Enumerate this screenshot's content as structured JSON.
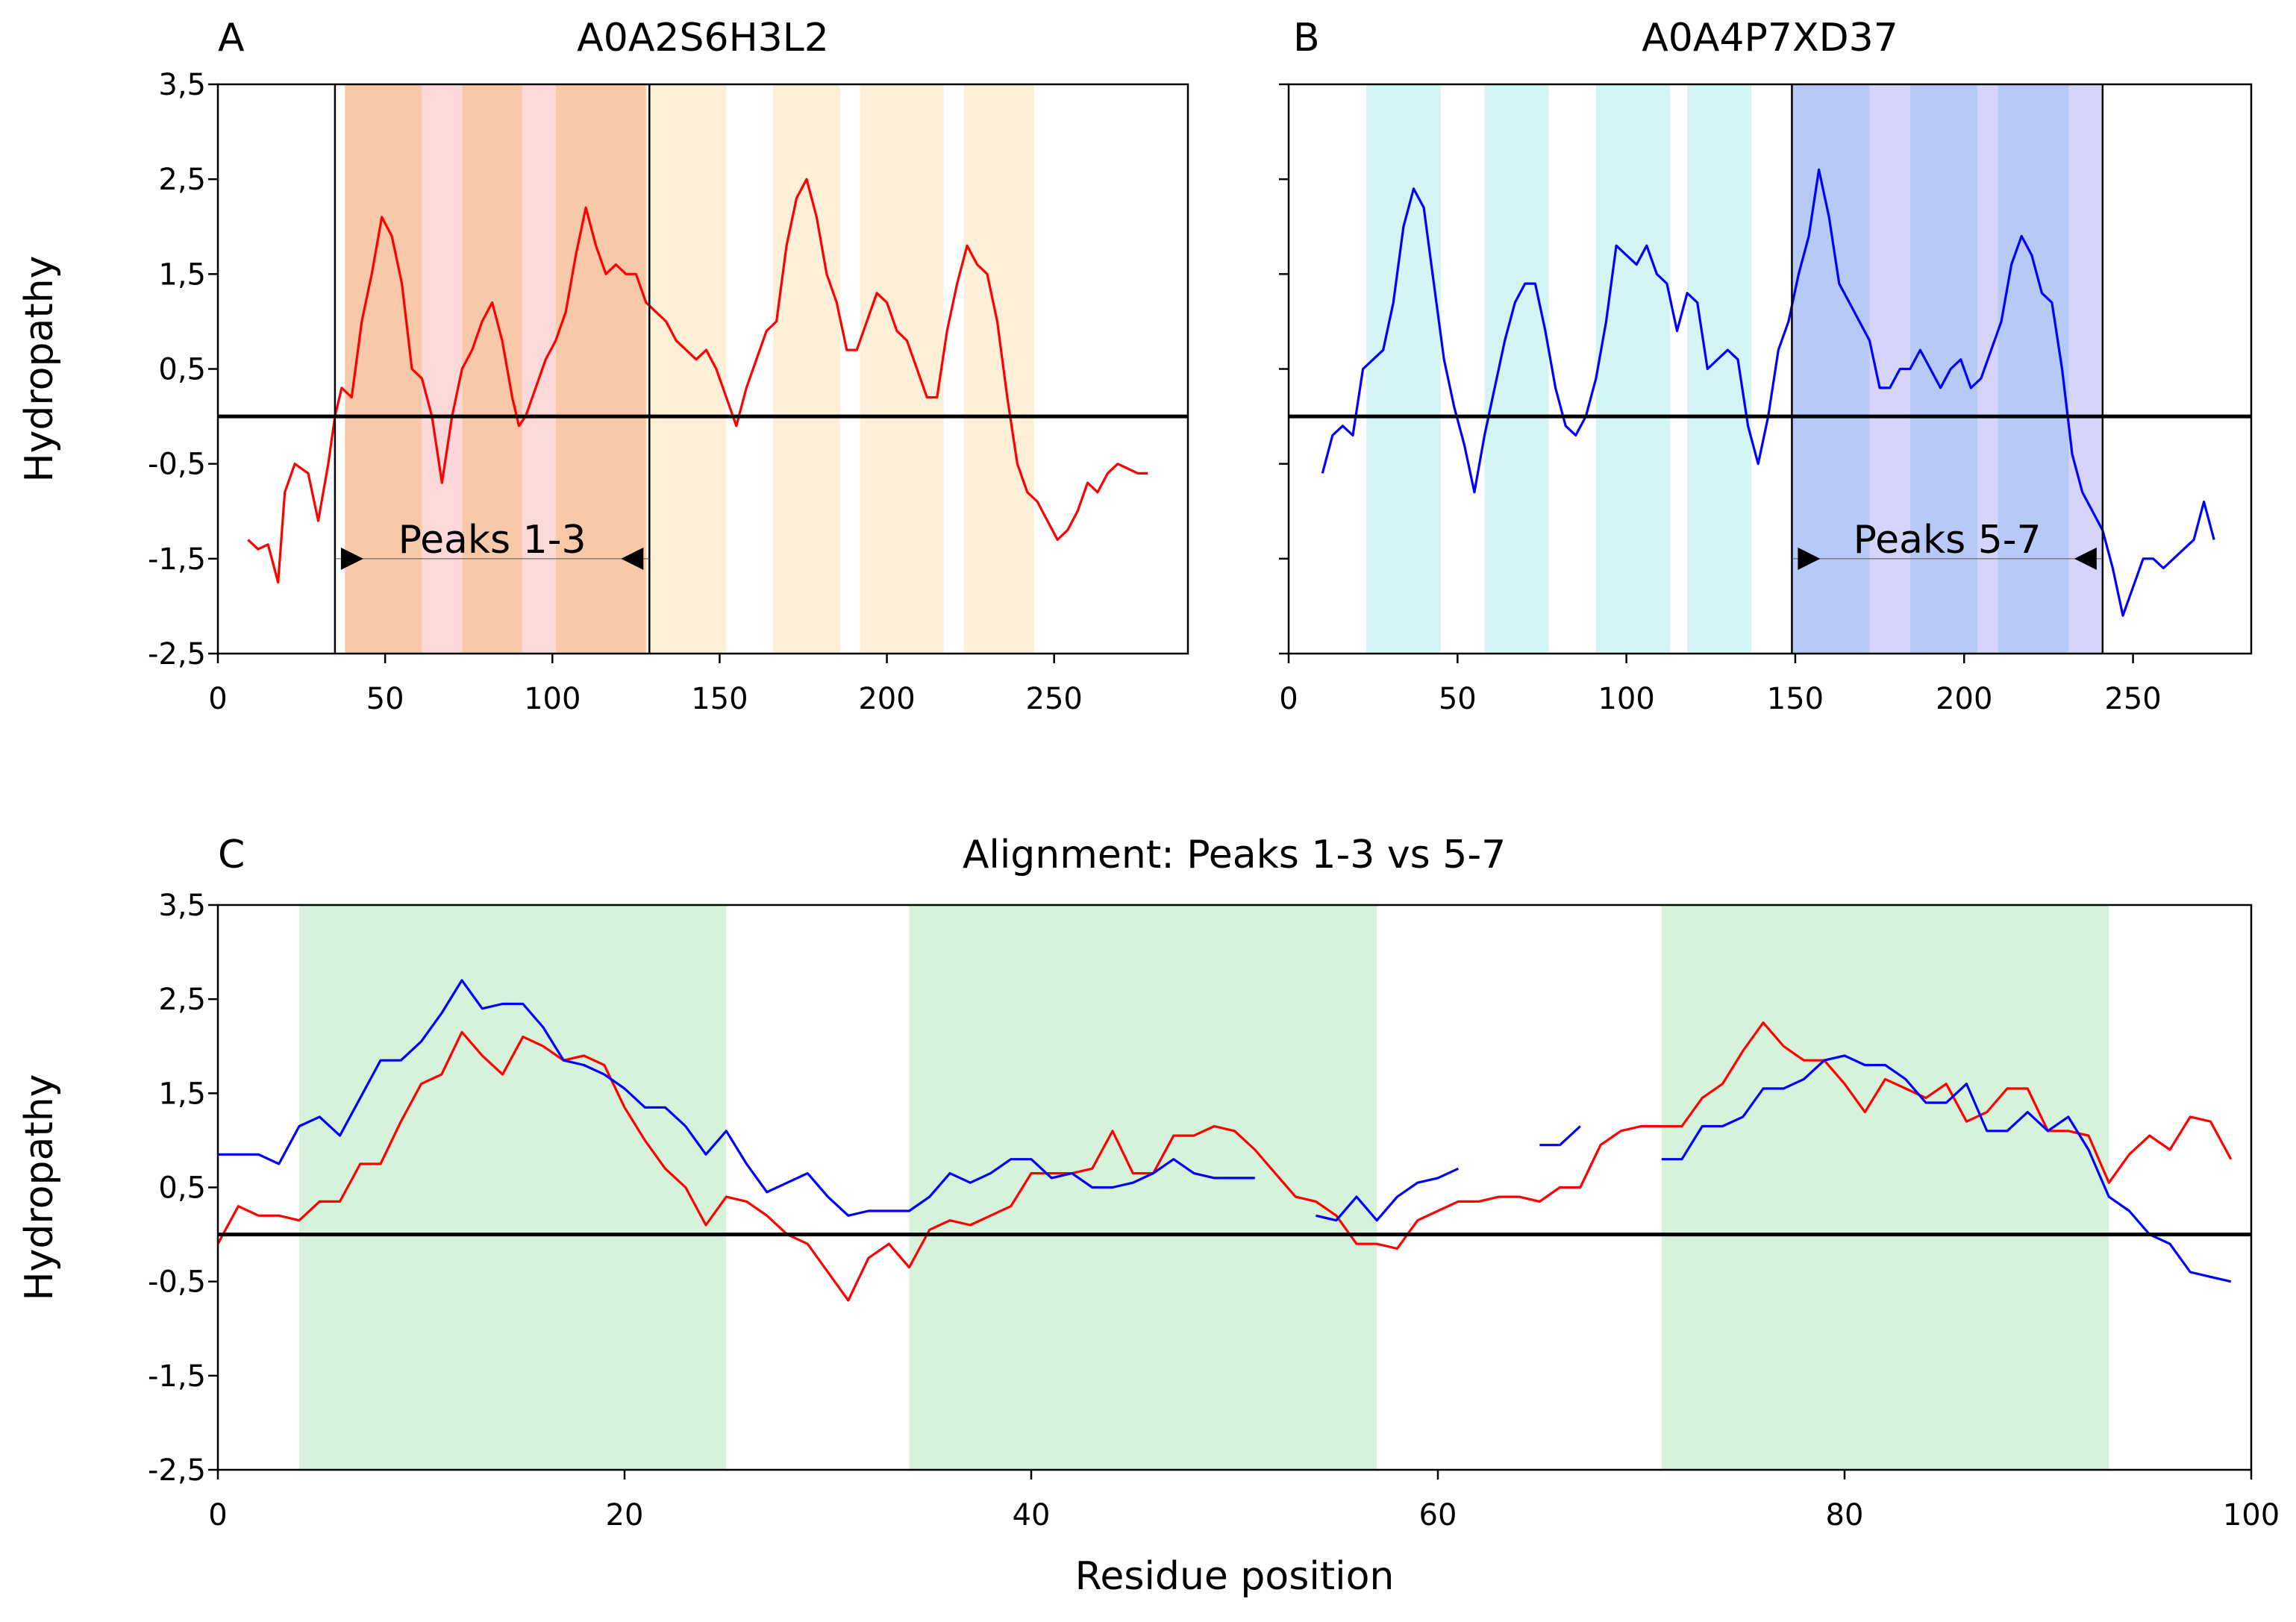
{
  "chart_data": [
    {
      "panel": "A",
      "type": "line",
      "title": "A0A2S6H3L2",
      "xlabel": "",
      "ylabel": "Hydropathy",
      "xlim": [
        0,
        290
      ],
      "ylim": [
        -2.5,
        3.5
      ],
      "xticks": [
        "0",
        "50",
        "100",
        "150",
        "200",
        "250"
      ],
      "yticks": [
        "3,5",
        "2,5",
        "1,5",
        "0,5",
        "-0,5",
        "-1,5",
        "-2,5"
      ],
      "baseline_y": 0,
      "series": [
        {
          "name": "A0A2S6H3L2",
          "color": "#ff0000",
          "x": [
            9,
            12,
            15,
            18,
            20,
            23,
            27,
            30,
            33,
            35,
            37,
            40,
            43,
            46,
            49,
            52,
            55,
            58,
            61,
            64,
            67,
            70,
            73,
            76,
            79,
            82,
            85,
            88,
            90,
            92,
            95,
            98,
            101,
            104,
            107,
            110,
            113,
            116,
            119,
            122,
            125,
            128,
            131,
            134,
            137,
            140,
            143,
            146,
            149,
            152,
            155,
            158,
            161,
            164,
            167,
            170,
            173,
            176,
            179,
            182,
            185,
            188,
            191,
            194,
            197,
            200,
            203,
            206,
            209,
            212,
            215,
            218,
            221,
            224,
            227,
            230,
            233,
            236,
            239,
            242,
            245,
            248,
            251,
            254,
            257,
            260,
            263,
            266,
            269,
            272,
            275,
            278
          ],
          "values": [
            -1.3,
            -1.4,
            -1.35,
            -1.75,
            -0.8,
            -0.5,
            -0.6,
            -1.1,
            -0.5,
            0.0,
            0.3,
            0.2,
            1.0,
            1.5,
            2.1,
            1.9,
            1.4,
            0.5,
            0.4,
            0.0,
            -0.7,
            0.0,
            0.5,
            0.7,
            1.0,
            1.2,
            0.8,
            0.2,
            -0.1,
            0.0,
            0.3,
            0.6,
            0.8,
            1.1,
            1.7,
            2.2,
            1.8,
            1.5,
            1.6,
            1.5,
            1.5,
            1.2,
            1.1,
            1.0,
            0.8,
            0.7,
            0.6,
            0.7,
            0.5,
            0.2,
            -0.1,
            0.3,
            0.6,
            0.9,
            1.0,
            1.8,
            2.3,
            2.5,
            2.1,
            1.5,
            1.2,
            0.7,
            0.7,
            1.0,
            1.3,
            1.2,
            0.9,
            0.8,
            0.5,
            0.2,
            0.2,
            0.9,
            1.4,
            1.8,
            1.6,
            1.5,
            1.0,
            0.2,
            -0.5,
            -0.8,
            -0.9,
            -1.1,
            -1.3,
            -1.2,
            -1.0,
            -0.7,
            -0.8,
            -0.6,
            -0.5,
            -0.55,
            -0.6,
            -0.6
          ]
        }
      ],
      "shaded_regions": [
        {
          "start": 38,
          "end": 61,
          "color": "#f8c9a8"
        },
        {
          "start": 61,
          "end": 73,
          "color": "#fdd8d8"
        },
        {
          "start": 73,
          "end": 91,
          "color": "#f8c9a8"
        },
        {
          "start": 91,
          "end": 101,
          "color": "#fdd8d8"
        },
        {
          "start": 101,
          "end": 128,
          "color": "#f8c9a8"
        },
        {
          "start": 128,
          "end": 152,
          "color": "#fdefd8"
        },
        {
          "start": 166,
          "end": 186,
          "color": "#fdefd8"
        },
        {
          "start": 192,
          "end": 217,
          "color": "#fdefd8"
        },
        {
          "start": 223,
          "end": 244,
          "color": "#fdefd8"
        }
      ],
      "bracket": {
        "start": 35,
        "end": 129,
        "label": "Peaks 1-3",
        "y": -1.5
      }
    },
    {
      "panel": "B",
      "type": "line",
      "title": "A0A4P7XD37",
      "xlabel": "",
      "ylabel": "",
      "xlim": [
        0,
        285
      ],
      "ylim": [
        -2.5,
        3.5
      ],
      "xticks": [
        "0",
        "50",
        "100",
        "150",
        "200",
        "250"
      ],
      "yticks": [
        "3,5",
        "2,5",
        "1,5",
        "0,5",
        "-0,5",
        "-1,5",
        "-2,5"
      ],
      "baseline_y": 0,
      "series": [
        {
          "name": "A0A4P7XD37",
          "color": "#0000ff",
          "x": [
            10,
            13,
            16,
            19,
            22,
            25,
            28,
            31,
            34,
            37,
            40,
            43,
            46,
            49,
            52,
            55,
            58,
            61,
            64,
            67,
            70,
            73,
            76,
            79,
            82,
            85,
            88,
            91,
            94,
            97,
            100,
            103,
            106,
            109,
            112,
            115,
            118,
            121,
            124,
            127,
            130,
            133,
            136,
            139,
            142,
            145,
            148,
            151,
            154,
            157,
            160,
            163,
            166,
            169,
            172,
            175,
            178,
            181,
            184,
            187,
            190,
            193,
            196,
            199,
            202,
            205,
            208,
            211,
            214,
            217,
            220,
            223,
            226,
            229,
            232,
            235,
            238,
            241,
            244,
            247,
            250,
            253,
            256,
            259,
            262,
            265,
            268,
            271,
            274
          ],
          "values": [
            -0.6,
            -0.2,
            -0.1,
            -0.2,
            0.5,
            0.6,
            0.7,
            1.2,
            2.0,
            2.4,
            2.2,
            1.4,
            0.6,
            0.1,
            -0.3,
            -0.8,
            -0.2,
            0.3,
            0.8,
            1.2,
            1.4,
            1.4,
            0.9,
            0.3,
            -0.1,
            -0.2,
            0.0,
            0.4,
            1.0,
            1.8,
            1.7,
            1.6,
            1.8,
            1.5,
            1.4,
            0.9,
            1.3,
            1.2,
            0.5,
            0.6,
            0.7,
            0.6,
            -0.1,
            -0.5,
            0.0,
            0.7,
            1.0,
            1.5,
            1.9,
            2.6,
            2.1,
            1.4,
            1.2,
            1.0,
            0.8,
            0.3,
            0.3,
            0.5,
            0.5,
            0.7,
            0.5,
            0.3,
            0.5,
            0.6,
            0.3,
            0.4,
            0.7,
            1.0,
            1.6,
            1.9,
            1.7,
            1.3,
            1.2,
            0.5,
            -0.4,
            -0.8,
            -1.0,
            -1.2,
            -1.6,
            -2.1,
            -1.8,
            -1.5,
            -1.5,
            -1.6,
            -1.5,
            -1.4,
            -1.3,
            -0.9,
            -1.3
          ]
        }
      ],
      "shaded_regions": [
        {
          "start": 23,
          "end": 45,
          "color": "#d4f5f5"
        },
        {
          "start": 58,
          "end": 77,
          "color": "#d4f5f5"
        },
        {
          "start": 91,
          "end": 113,
          "color": "#d4f5f5"
        },
        {
          "start": 118,
          "end": 137,
          "color": "#d4f5f5"
        },
        {
          "start": 149,
          "end": 172,
          "color": "#b7c9f7"
        },
        {
          "start": 172,
          "end": 184,
          "color": "#d5d5fb"
        },
        {
          "start": 184,
          "end": 204,
          "color": "#b7c9f7"
        },
        {
          "start": 204,
          "end": 210,
          "color": "#d5d5fb"
        },
        {
          "start": 210,
          "end": 231,
          "color": "#b7c9f7"
        },
        {
          "start": 231,
          "end": 241,
          "color": "#d5d5fb"
        }
      ],
      "bracket": {
        "start": 149,
        "end": 241,
        "label": "Peaks 5-7",
        "y": -1.5
      }
    },
    {
      "panel": "C",
      "type": "line",
      "title": "Alignment: Peaks 1-3 vs 5-7",
      "xlabel": "Residue position",
      "ylabel": "Hydropathy",
      "xlim": [
        0,
        100
      ],
      "ylim": [
        -2.5,
        3.5
      ],
      "xticks": [
        "0",
        "20",
        "40",
        "60",
        "80",
        "100"
      ],
      "yticks": [
        "3,5",
        "2,5",
        "1,5",
        "0,5",
        "-0,5",
        "-1,5",
        "-2,5"
      ],
      "baseline_y": 0,
      "series": [
        {
          "name": "Peaks 1-3",
          "color": "#ff0000",
          "segments": [
            {
              "x": [
                0,
                1,
                2,
                3,
                4,
                5,
                6,
                7,
                8,
                9,
                10,
                11,
                12,
                13,
                14,
                15,
                16,
                17,
                18,
                19,
                20,
                21,
                22,
                23,
                24,
                25,
                26,
                27,
                28,
                29,
                30,
                31,
                32,
                33,
                34,
                35,
                36,
                37,
                38,
                39,
                40,
                41,
                42,
                43,
                44,
                45,
                46,
                47,
                48,
                49,
                50,
                51,
                52,
                53,
                54,
                55,
                56,
                57,
                58,
                59,
                60,
                61,
                62,
                63,
                64,
                65,
                66,
                67,
                68,
                69,
                70,
                71,
                72,
                73,
                74,
                75,
                76,
                77,
                78,
                79,
                80,
                81,
                82,
                83,
                84,
                85,
                86,
                87,
                88,
                89,
                90,
                91,
                92,
                93,
                94,
                95,
                96,
                97,
                98,
                99
              ],
              "values": [
                -0.1,
                0.3,
                0.2,
                0.2,
                0.15,
                0.35,
                0.35,
                0.75,
                0.75,
                1.2,
                1.6,
                1.7,
                2.15,
                1.9,
                1.7,
                2.1,
                2.0,
                1.85,
                1.9,
                1.8,
                1.35,
                1.0,
                0.7,
                0.5,
                0.1,
                0.4,
                0.35,
                0.2,
                0.0,
                -0.1,
                -0.4,
                -0.7,
                -0.25,
                -0.1,
                -0.35,
                0.05,
                0.15,
                0.1,
                0.2,
                0.3,
                0.65,
                0.65,
                0.65,
                0.7,
                1.1,
                0.65,
                0.65,
                1.05,
                1.05,
                1.15,
                1.1,
                0.9,
                0.65,
                0.4,
                0.35,
                0.2,
                -0.1,
                -0.1,
                -0.15,
                0.15,
                0.25,
                0.35,
                0.35,
                0.4,
                0.4,
                0.35,
                0.5,
                0.5,
                0.95,
                1.1,
                1.15,
                1.15,
                1.15,
                1.45,
                1.6,
                1.95,
                2.25,
                2.0,
                1.85,
                1.85,
                1.6,
                1.3,
                1.65,
                1.55,
                1.45,
                1.6,
                1.2,
                1.3,
                1.55,
                1.55,
                1.1,
                1.1,
                1.05,
                0.55,
                0.85,
                1.05,
                0.9,
                1.25,
                1.2,
                0.8
              ]
            }
          ]
        },
        {
          "name": "Peaks 5-7",
          "color": "#0000ff",
          "segments": [
            {
              "x": [
                0,
                1,
                2,
                3,
                4,
                5,
                6,
                7,
                8,
                9,
                10,
                11,
                12,
                13,
                14,
                15,
                16,
                17,
                18,
                19,
                20,
                21,
                22,
                23,
                24,
                25,
                26,
                27,
                28,
                29,
                30,
                31,
                32,
                33,
                34,
                35,
                36,
                37,
                38,
                39,
                40,
                41,
                42,
                43,
                44,
                45,
                46,
                47,
                48,
                49,
                50,
                51
              ],
              "values": [
                0.85,
                0.85,
                0.85,
                0.75,
                1.15,
                1.25,
                1.05,
                1.45,
                1.85,
                1.85,
                2.05,
                2.35,
                2.7,
                2.4,
                2.45,
                2.45,
                2.2,
                1.85,
                1.8,
                1.7,
                1.55,
                1.35,
                1.35,
                1.15,
                0.85,
                1.1,
                0.75,
                0.45,
                0.55,
                0.65,
                0.4,
                0.2,
                0.25,
                0.25,
                0.25,
                0.4,
                0.65,
                0.55,
                0.65,
                0.8,
                0.8,
                0.6,
                0.65,
                0.5,
                0.5,
                0.55,
                0.65,
                0.8,
                0.65,
                0.6,
                0.6,
                0.6
              ]
            },
            {
              "x": [
                54,
                55,
                56,
                57,
                58,
                59,
                60,
                61
              ],
              "values": [
                0.2,
                0.15,
                0.4,
                0.15,
                0.4,
                0.55,
                0.6,
                0.7
              ]
            },
            {
              "x": [
                65,
                66,
                67
              ],
              "values": [
                0.95,
                0.95,
                1.15
              ]
            },
            {
              "x": [
                71,
                72,
                73,
                74,
                75,
                76,
                77,
                78,
                79,
                80,
                81,
                82,
                83,
                84,
                85,
                86,
                87,
                88,
                89,
                90,
                91,
                92,
                93,
                94,
                95,
                96,
                97,
                98,
                99
              ],
              "values": [
                0.8,
                0.8,
                1.15,
                1.15,
                1.25,
                1.55,
                1.55,
                1.65,
                1.85,
                1.9,
                1.8,
                1.8,
                1.65,
                1.4,
                1.4,
                1.6,
                1.1,
                1.1,
                1.3,
                1.1,
                1.25,
                0.9,
                0.4,
                0.25,
                0.0,
                -0.1,
                -0.4,
                -0.45,
                -0.5
              ]
            }
          ]
        }
      ],
      "shaded_regions": [
        {
          "start": 4,
          "end": 25,
          "color": "#d6f2da"
        },
        {
          "start": 34,
          "end": 57,
          "color": "#d6f2da"
        },
        {
          "start": 71,
          "end": 93,
          "color": "#d6f2da"
        }
      ]
    }
  ]
}
